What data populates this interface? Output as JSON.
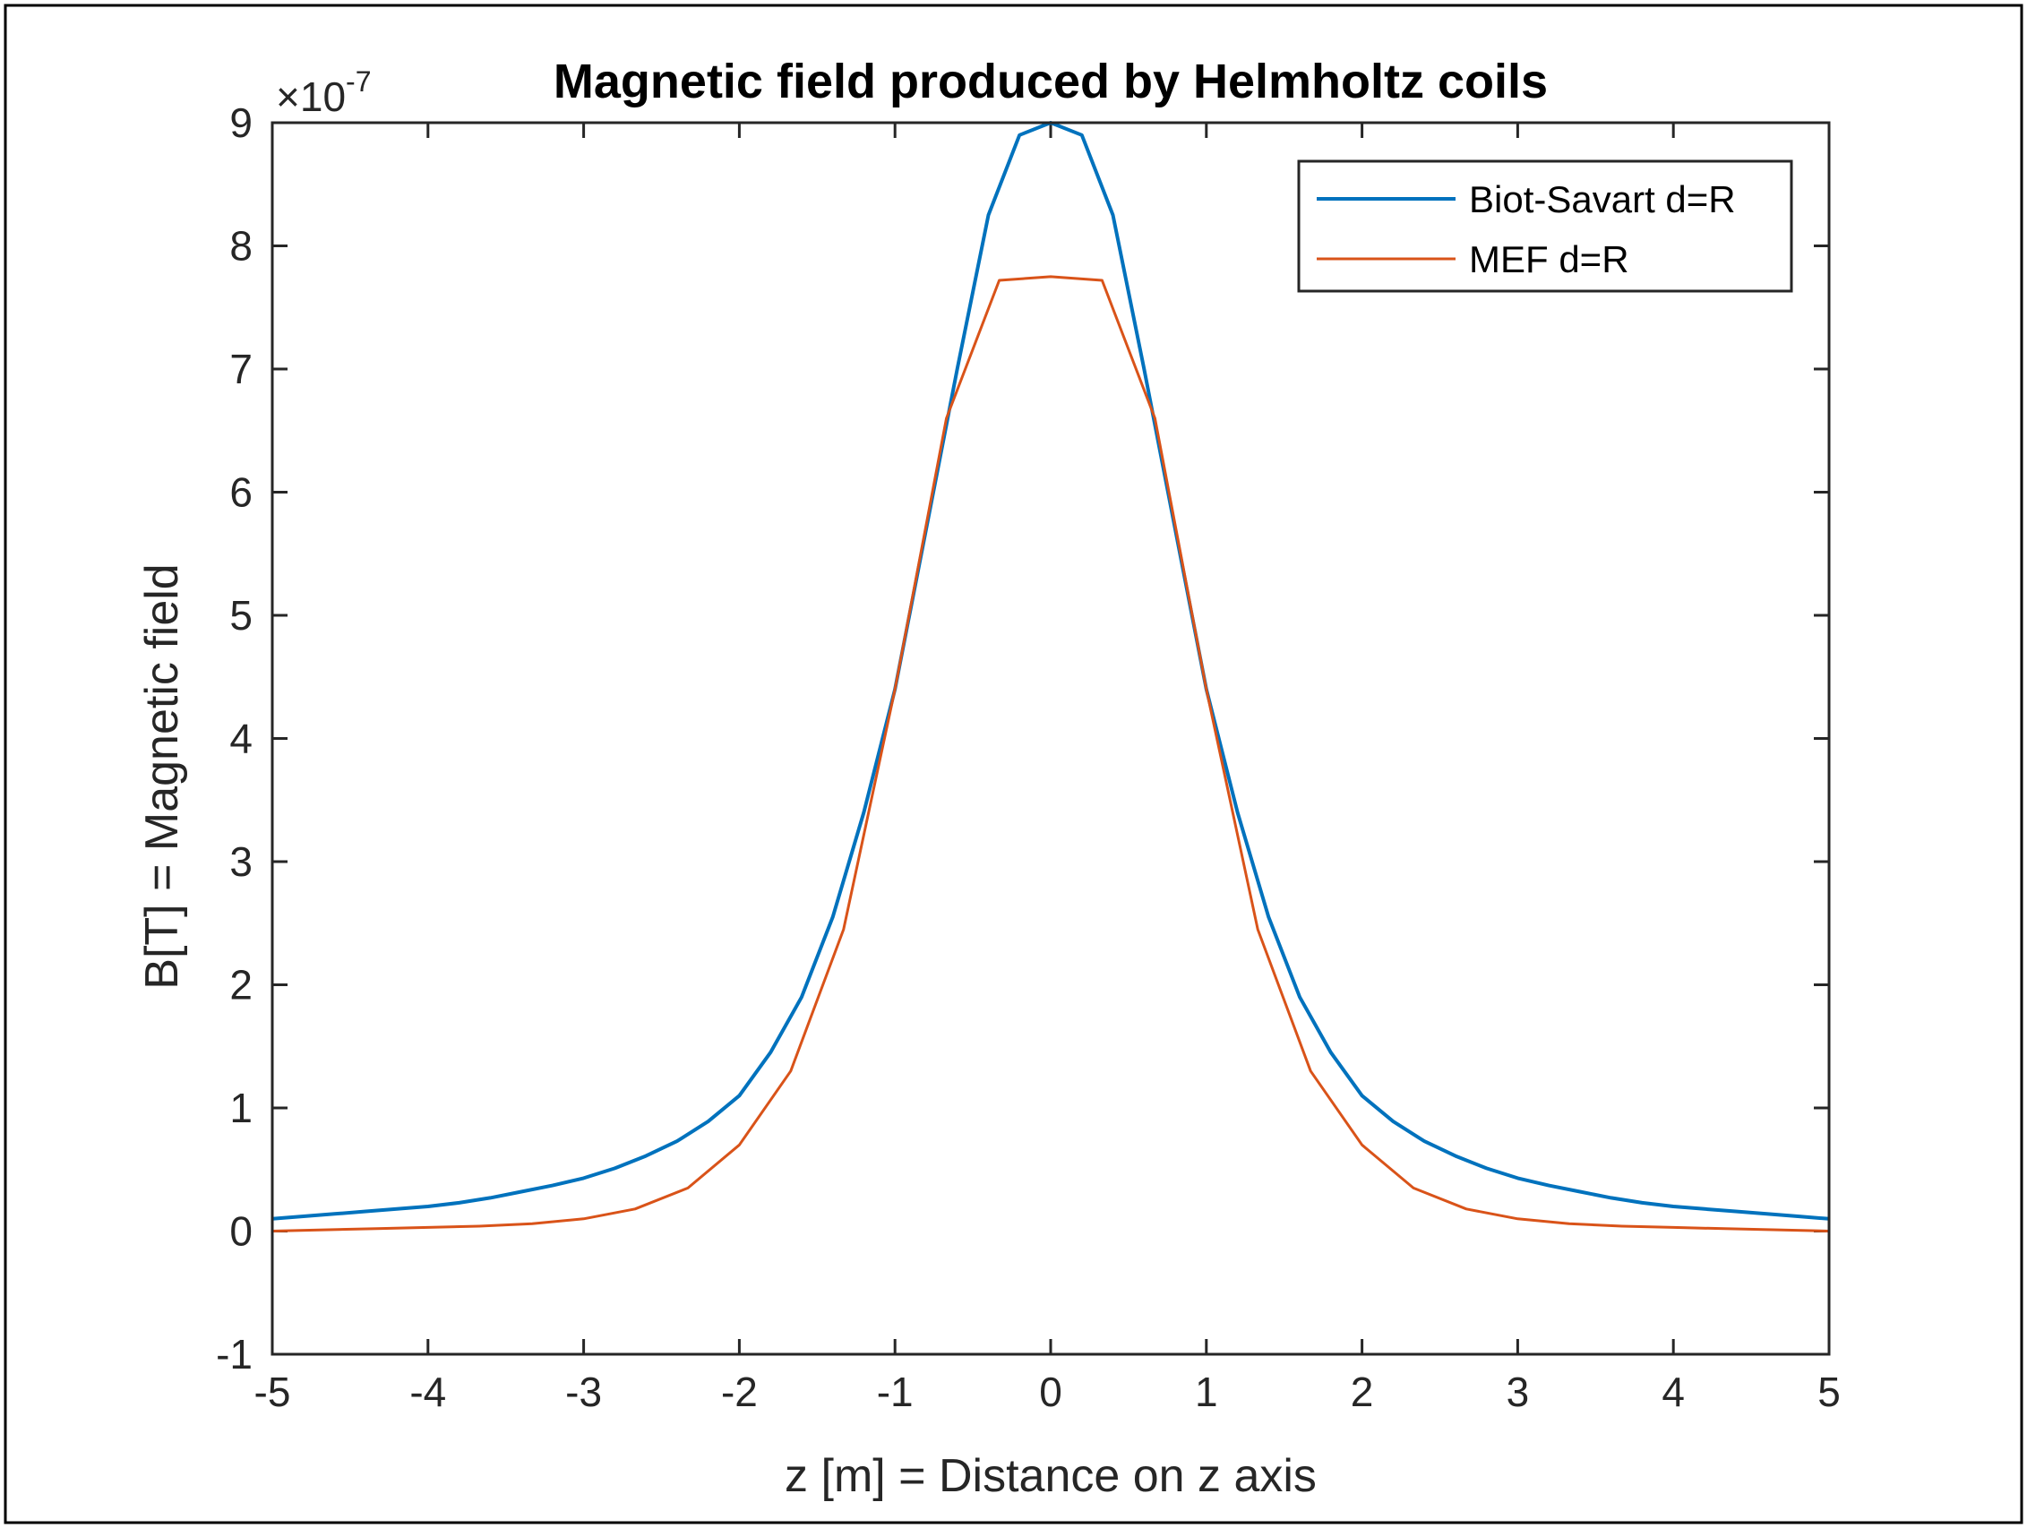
{
  "chart_data": {
    "type": "line",
    "title": "Magnetic field produced by Helmholtz coils",
    "xlabel": "z [m] = Distance on z axis",
    "ylabel": "B[T] = Magnetic field",
    "y_multiplier": {
      "base": "×10",
      "exponent": "-7"
    },
    "xlim": [
      -5,
      5
    ],
    "ylim": [
      -1,
      9
    ],
    "x_ticks": [
      "-5",
      "-4",
      "-3",
      "-2",
      "-1",
      "0",
      "1",
      "2",
      "3",
      "4",
      "5"
    ],
    "y_ticks": [
      "-1",
      "0",
      "1",
      "2",
      "3",
      "4",
      "5",
      "6",
      "7",
      "8",
      "9"
    ],
    "grid": false,
    "legend_position": "top-right",
    "series": [
      {
        "name": "Biot-Savart d=R",
        "color": "#0072BD",
        "x": [
          -5.0,
          -4.8,
          -4.6,
          -4.4,
          -4.2,
          -4.0,
          -3.8,
          -3.6,
          -3.4,
          -3.2,
          -3.0,
          -2.8,
          -2.6,
          -2.4,
          -2.2,
          -2.0,
          -1.8,
          -1.6,
          -1.4,
          -1.2,
          -1.0,
          -0.8,
          -0.6,
          -0.4,
          -0.2,
          0.0,
          0.2,
          0.4,
          0.6,
          0.8,
          1.0,
          1.2,
          1.4,
          1.6,
          1.8,
          2.0,
          2.2,
          2.4,
          2.6,
          2.8,
          3.0,
          3.2,
          3.4,
          3.6,
          3.8,
          4.0,
          4.2,
          4.4,
          4.6,
          4.8,
          5.0
        ],
        "y": [
          0.1,
          0.12,
          0.14,
          0.16,
          0.18,
          0.2,
          0.23,
          0.27,
          0.32,
          0.37,
          0.43,
          0.51,
          0.61,
          0.73,
          0.89,
          1.1,
          1.45,
          1.9,
          2.55,
          3.4,
          4.4,
          5.7,
          7.0,
          8.25,
          8.9,
          9.0,
          8.9,
          8.25,
          7.0,
          5.7,
          4.4,
          3.4,
          2.55,
          1.9,
          1.45,
          1.1,
          0.89,
          0.73,
          0.61,
          0.51,
          0.43,
          0.37,
          0.32,
          0.27,
          0.23,
          0.2,
          0.18,
          0.16,
          0.14,
          0.12,
          0.1
        ]
      },
      {
        "name": "MEF d=R",
        "color": "#D95319",
        "x": [
          -5.0,
          -4.67,
          -4.33,
          -4.0,
          -3.67,
          -3.33,
          -3.0,
          -2.67,
          -2.33,
          -2.0,
          -1.67,
          -1.33,
          -1.0,
          -0.67,
          -0.33,
          0.0,
          0.33,
          0.67,
          1.0,
          1.33,
          1.67,
          2.0,
          2.33,
          2.67,
          3.0,
          3.33,
          3.67,
          4.0,
          4.33,
          4.67,
          5.0
        ],
        "y": [
          0.0,
          0.01,
          0.02,
          0.03,
          0.04,
          0.06,
          0.1,
          0.18,
          0.35,
          0.7,
          1.3,
          2.45,
          4.4,
          6.6,
          7.72,
          7.75,
          7.72,
          6.6,
          4.4,
          2.45,
          1.3,
          0.7,
          0.35,
          0.18,
          0.1,
          0.06,
          0.04,
          0.03,
          0.02,
          0.01,
          0.0
        ]
      }
    ]
  }
}
